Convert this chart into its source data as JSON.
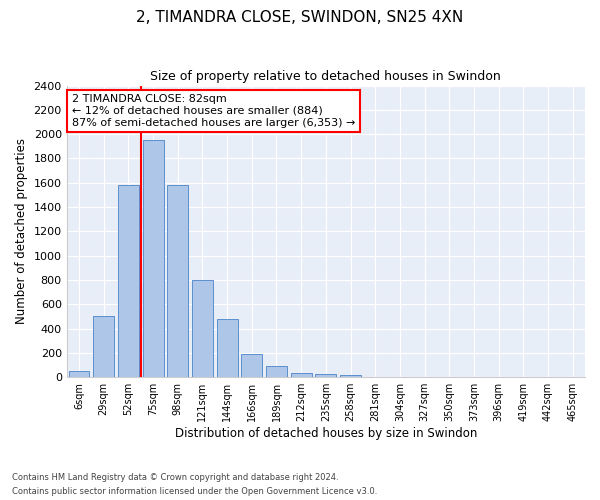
{
  "title": "2, TIMANDRA CLOSE, SWINDON, SN25 4XN",
  "subtitle": "Size of property relative to detached houses in Swindon",
  "xlabel": "Distribution of detached houses by size in Swindon",
  "ylabel": "Number of detached properties",
  "bar_labels": [
    "6sqm",
    "29sqm",
    "52sqm",
    "75sqm",
    "98sqm",
    "121sqm",
    "144sqm",
    "166sqm",
    "189sqm",
    "212sqm",
    "235sqm",
    "258sqm",
    "281sqm",
    "304sqm",
    "327sqm",
    "350sqm",
    "373sqm",
    "396sqm",
    "419sqm",
    "442sqm",
    "465sqm"
  ],
  "bar_values": [
    55,
    500,
    1580,
    1950,
    1585,
    800,
    480,
    195,
    90,
    35,
    25,
    20,
    0,
    0,
    0,
    0,
    0,
    0,
    0,
    0,
    0
  ],
  "bar_color": "#aec6e8",
  "bar_edge_color": "#5b8fcc",
  "bg_color": "#e8eef8",
  "grid_color": "#ffffff",
  "vline_color": "red",
  "vline_x_index": 3,
  "annotation_text": "2 TIMANDRA CLOSE: 82sqm\n← 12% of detached houses are smaller (884)\n87% of semi-detached houses are larger (6,353) →",
  "ylim": [
    0,
    2400
  ],
  "yticks": [
    0,
    200,
    400,
    600,
    800,
    1000,
    1200,
    1400,
    1600,
    1800,
    2000,
    2200,
    2400
  ],
  "footer_line1": "Contains HM Land Registry data © Crown copyright and database right 2024.",
  "footer_line2": "Contains public sector information licensed under the Open Government Licence v3.0."
}
